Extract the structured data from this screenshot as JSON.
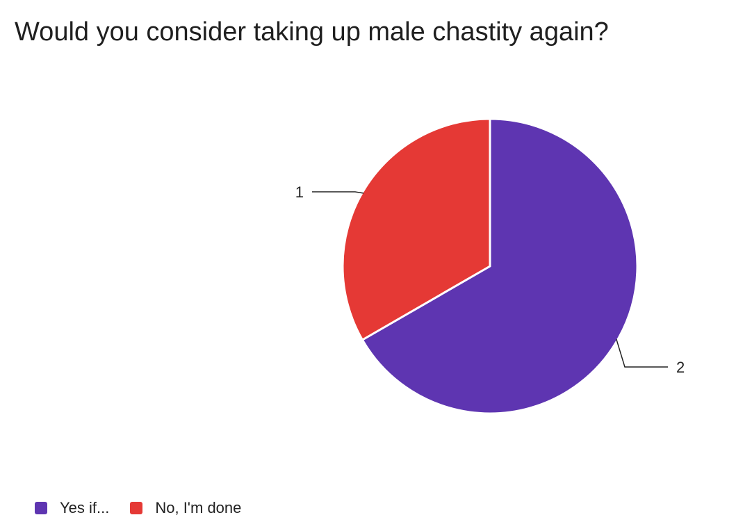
{
  "chart_data": {
    "type": "pie",
    "title": "Would you consider taking up male chastity again?",
    "categories": [
      "Yes if...",
      "No, I'm done"
    ],
    "values": [
      2,
      1
    ],
    "colors": [
      "#5e35b1",
      "#e53935"
    ],
    "legend_position": "bottom-left"
  }
}
